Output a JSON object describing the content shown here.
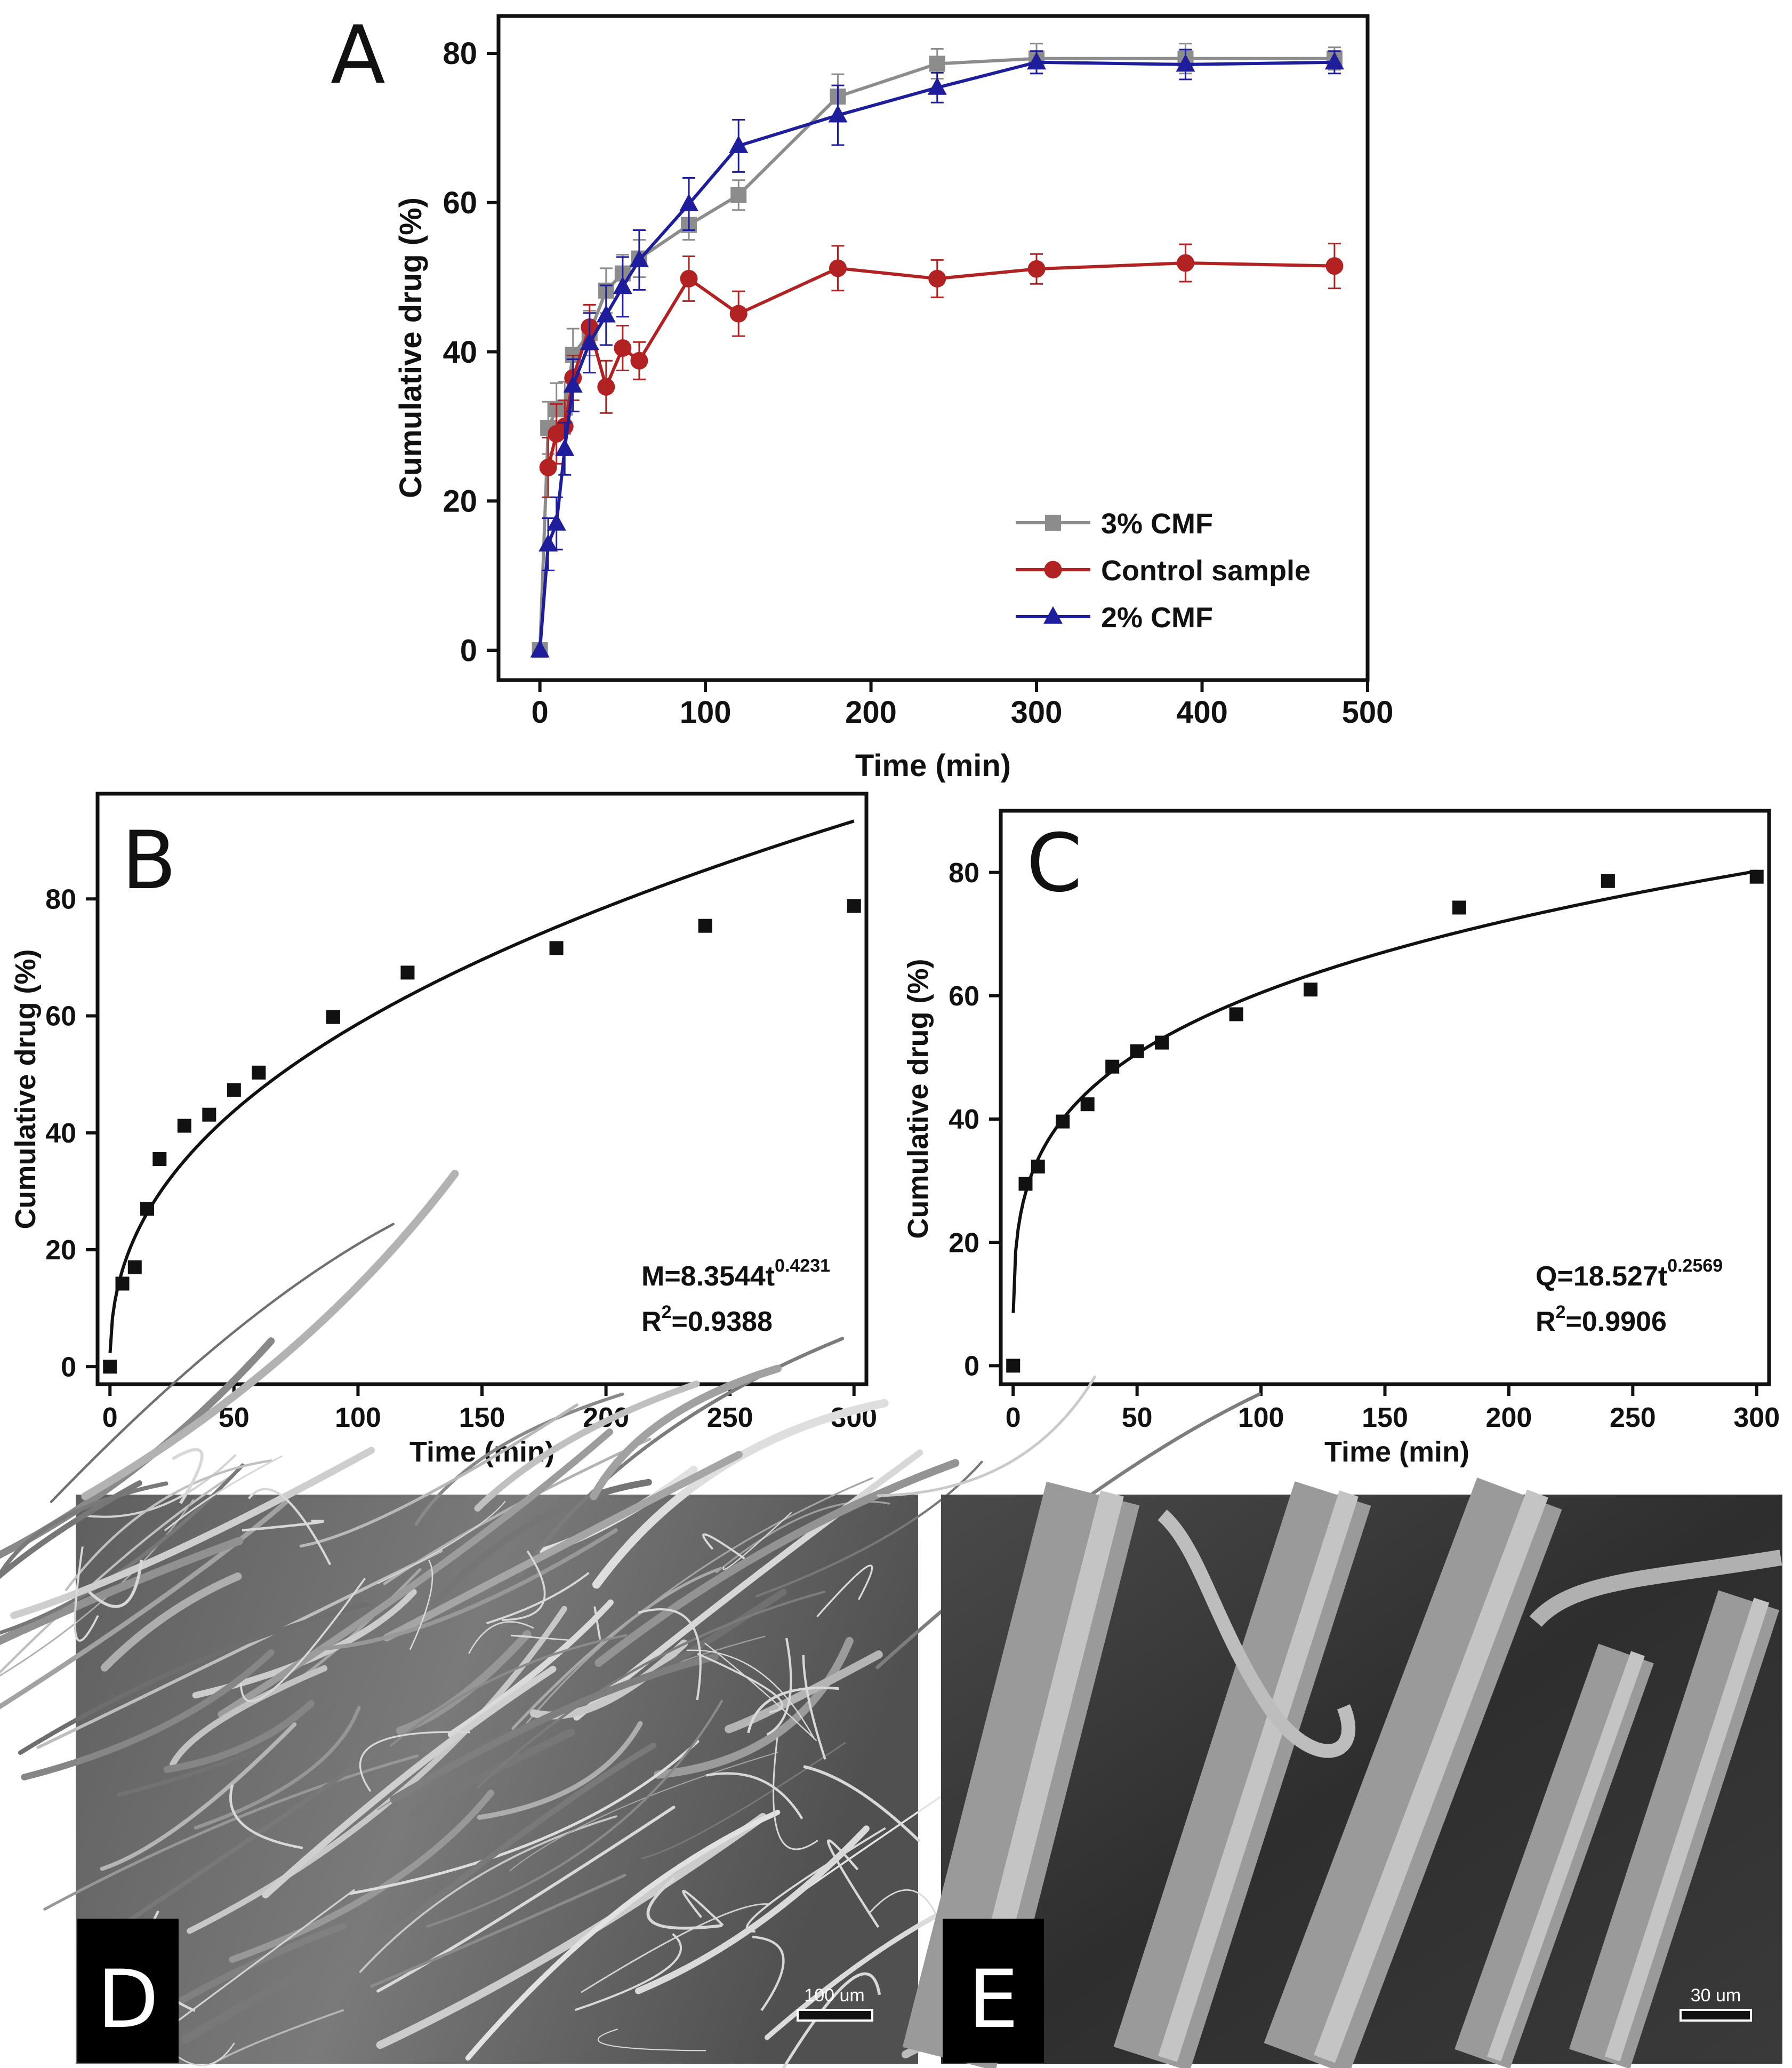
{
  "chart_data": [
    {
      "panel": "A",
      "type": "line",
      "xlabel": "Time (min)",
      "ylabel": "Cumulative drug (%)",
      "xlim": [
        -25,
        500
      ],
      "ylim": [
        -4,
        85
      ],
      "xticks": [
        0,
        100,
        200,
        300,
        400,
        500
      ],
      "yticks": [
        0,
        20,
        40,
        60,
        80
      ],
      "legend_position": "bottom-right",
      "series": [
        {
          "name": "3% CMF",
          "color": "#8c8c8c",
          "marker": "square",
          "x": [
            0,
            5,
            10,
            15,
            20,
            30,
            40,
            50,
            60,
            90,
            120,
            180,
            240,
            300,
            390,
            480
          ],
          "y": [
            0,
            29.8,
            32.3,
            32.5,
            39.6,
            42.5,
            48.2,
            50.5,
            52.5,
            57.0,
            61.0,
            74.2,
            78.6,
            79.3,
            79.3,
            79.3
          ],
          "err": [
            0,
            3.5,
            3.5,
            3.5,
            3.5,
            3.0,
            3.0,
            2.5,
            2.5,
            2.0,
            2.0,
            3.0,
            2.0,
            2.0,
            2.0,
            1.5
          ]
        },
        {
          "name": "Control sample",
          "color": "#b22222",
          "marker": "circle",
          "x": [
            5,
            10,
            15,
            20,
            30,
            40,
            50,
            60,
            90,
            120,
            180,
            240,
            300,
            390,
            480
          ],
          "y": [
            24.5,
            29.0,
            30.0,
            36.5,
            43.3,
            35.3,
            40.5,
            38.8,
            49.8,
            45.1,
            51.2,
            49.8,
            51.1,
            51.9,
            51.5
          ],
          "err": [
            4.0,
            4.0,
            3.5,
            3.0,
            3.0,
            3.5,
            3.0,
            2.5,
            3.0,
            3.0,
            3.0,
            2.5,
            2.0,
            2.5,
            3.0
          ]
        },
        {
          "name": "2% CMF",
          "color": "#1e1e9c",
          "marker": "triangle",
          "x": [
            0,
            5,
            10,
            15,
            20,
            30,
            40,
            50,
            60,
            90,
            120,
            180,
            240,
            300,
            390,
            480
          ],
          "y": [
            0,
            14.2,
            17.0,
            27.0,
            35.5,
            41.2,
            44.9,
            48.7,
            52.3,
            59.8,
            67.6,
            71.7,
            75.4,
            78.8,
            78.5,
            78.8
          ],
          "err": [
            0,
            3.5,
            3.5,
            3.5,
            3.5,
            4.0,
            4.0,
            4.0,
            4.0,
            3.5,
            3.5,
            4.0,
            2.0,
            1.5,
            2.0,
            1.5
          ]
        }
      ]
    },
    {
      "panel": "B",
      "type": "scatter",
      "xlabel": "Time (min)",
      "ylabel": "Cumulative drug (%)",
      "xlim": [
        -5,
        305
      ],
      "ylim": [
        -3,
        98
      ],
      "xticks": [
        0,
        50,
        100,
        150,
        200,
        250,
        300
      ],
      "yticks": [
        0,
        20,
        40,
        60,
        80
      ],
      "points": {
        "x": [
          0,
          5,
          10,
          15,
          20,
          30,
          40,
          50,
          60,
          90,
          120,
          180,
          240,
          300
        ],
        "y": [
          0,
          14.2,
          17.0,
          27.0,
          35.5,
          41.2,
          43.1,
          47.3,
          50.3,
          59.8,
          67.4,
          71.6,
          75.4,
          78.8
        ]
      },
      "fit": {
        "a": 8.3544,
        "b": 0.4231
      },
      "equation_prefix": "M=8.3544t",
      "equation_exponent": "0.4231",
      "r2_prefix": "R",
      "r2_sup": "2",
      "r2_value": "=0.9388"
    },
    {
      "panel": "C",
      "type": "scatter",
      "xlabel": "Time (min)",
      "ylabel": "Cumulative drug (%)",
      "xlim": [
        -5,
        305
      ],
      "ylim": [
        -3,
        90
      ],
      "xticks": [
        0,
        50,
        100,
        150,
        200,
        250,
        300
      ],
      "yticks": [
        0,
        20,
        40,
        60,
        80
      ],
      "points": {
        "x": [
          0,
          5,
          10,
          20,
          30,
          40,
          50,
          60,
          90,
          120,
          180,
          240,
          300
        ],
        "y": [
          0,
          29.5,
          32.3,
          39.6,
          42.4,
          48.5,
          51.0,
          52.4,
          57.0,
          61.0,
          74.3,
          78.6,
          79.3
        ]
      },
      "fit": {
        "a": 18.527,
        "b": 0.2569
      },
      "equation_prefix": "Q=18.527t",
      "equation_exponent": "0.2569",
      "r2_prefix": "R",
      "r2_sup": "2",
      "r2_value": "=0.9906"
    }
  ],
  "panel_labels": {
    "a": "A",
    "b": "B",
    "c": "C",
    "d": "D",
    "e": "E"
  },
  "images": {
    "d_scale": "100 um",
    "e_scale": "30 um"
  }
}
